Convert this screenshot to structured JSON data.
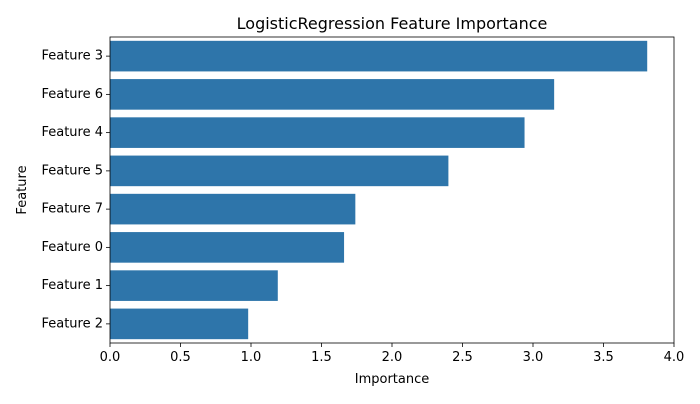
{
  "chart_data": {
    "type": "bar",
    "orientation": "horizontal",
    "title": "LogisticRegression Feature Importance",
    "xlabel": "Importance",
    "ylabel": "Feature",
    "categories": [
      "Feature 3",
      "Feature 6",
      "Feature 4",
      "Feature 5",
      "Feature 7",
      "Feature 0",
      "Feature 1",
      "Feature 2"
    ],
    "values": [
      3.81,
      3.15,
      2.94,
      2.4,
      1.74,
      1.66,
      1.19,
      0.98
    ],
    "xlim": [
      0,
      4.0
    ],
    "xticks": [
      "0.0",
      "0.5",
      "1.0",
      "1.5",
      "2.0",
      "2.5",
      "3.0",
      "3.5",
      "4.0"
    ],
    "grid": false,
    "bar_color": "#2e75aa"
  }
}
